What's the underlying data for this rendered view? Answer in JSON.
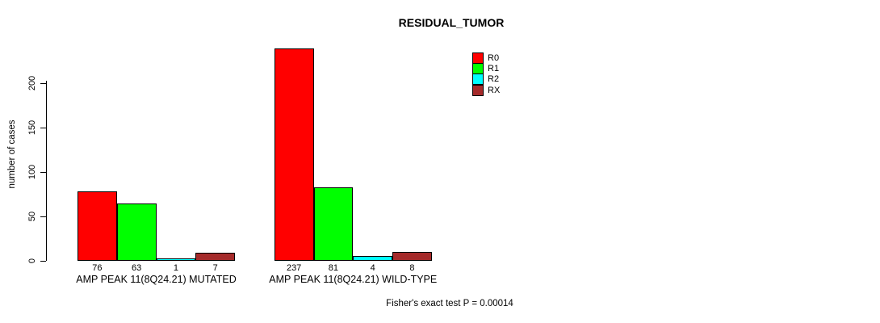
{
  "footer": "Fisher's exact test P = 0.00014",
  "chart_data": {
    "type": "bar",
    "title": "RESIDUAL_TUMOR",
    "ylabel": "number of cases",
    "xlabel": "",
    "categories": [
      "AMP PEAK 11(8Q24.21) MUTATED",
      "AMP PEAK 11(8Q24.21) WILD-TYPE"
    ],
    "series": [
      {
        "name": "R0",
        "color": "#ff0000",
        "values": [
          76,
          237
        ]
      },
      {
        "name": "R1",
        "color": "#00ff00",
        "values": [
          63,
          81
        ]
      },
      {
        "name": "R2",
        "color": "#00ffff",
        "values": [
          1,
          4
        ]
      },
      {
        "name": "RX",
        "color": "#a52a2a",
        "values": [
          7,
          8
        ]
      }
    ],
    "yticks": [
      0,
      50,
      100,
      150,
      200
    ],
    "ylim": [
      0,
      200
    ],
    "bar_value_labels": true,
    "grid": false,
    "legend_position": "inside-top-center",
    "annotation": "Fisher's exact test P = 0.00014",
    "axis_color": "#000000",
    "background_color": "#ffffff"
  }
}
